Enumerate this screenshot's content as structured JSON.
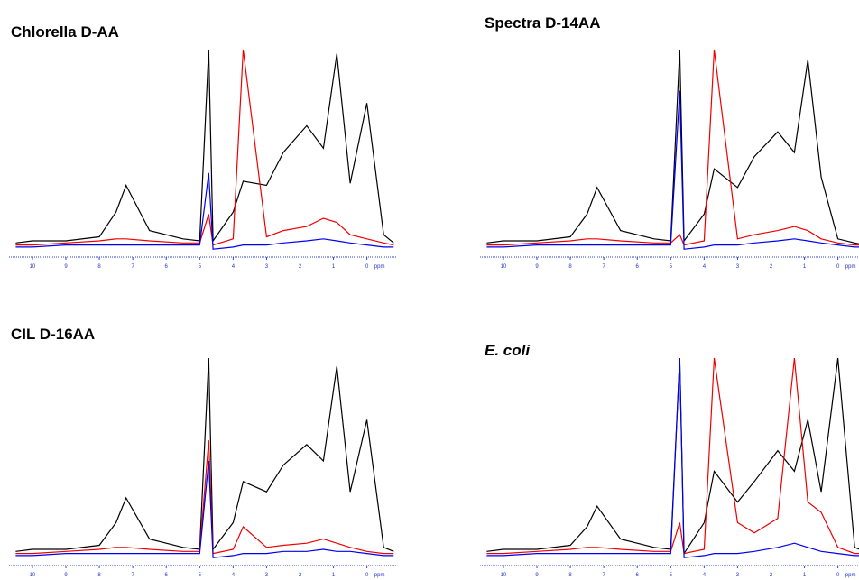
{
  "chart_data": [
    {
      "type": "line",
      "title": "Chlorella D-AA",
      "xlabel": "ppm",
      "x": [
        10.5,
        10,
        9,
        8,
        7.5,
        7.2,
        6.5,
        5.5,
        5,
        4.73,
        4.6,
        4,
        3.7,
        3,
        2.5,
        1.8,
        1.3,
        0.9,
        0.5,
        0,
        -0.5,
        -0.8
      ],
      "xlim": [
        10.7,
        -0.9
      ],
      "xticks": [
        10,
        9,
        8,
        7,
        6,
        5,
        4,
        3,
        2,
        1,
        0
      ],
      "ylim": [
        0,
        100
      ],
      "series": [
        {
          "name": "black",
          "color": "#000000",
          "values": [
            6,
            7,
            7,
            9,
            21,
            34,
            12,
            8,
            7,
            100,
            7,
            21,
            36,
            34,
            50,
            63,
            52,
            98,
            35,
            74,
            10,
            6
          ]
        },
        {
          "name": "red",
          "color": "#ee0000",
          "values": [
            5,
            5,
            6,
            7,
            8,
            8,
            7,
            6,
            6,
            20,
            5,
            8,
            100,
            9,
            12,
            14,
            18,
            16,
            10,
            8,
            6,
            5
          ]
        },
        {
          "name": "blue",
          "color": "#0000ee",
          "values": [
            4,
            4,
            5,
            5,
            5,
            5,
            5,
            5,
            5,
            40,
            3,
            4,
            5,
            5,
            6,
            7,
            8,
            7,
            6,
            5,
            4,
            4
          ]
        }
      ]
    },
    {
      "type": "line",
      "title": "Spectra D-14AA",
      "xlabel": "ppm",
      "x": [
        10.5,
        10,
        9,
        8,
        7.5,
        7.2,
        6.5,
        5.5,
        5,
        4.73,
        4.6,
        4,
        3.7,
        3,
        2.5,
        1.8,
        1.3,
        0.9,
        0.5,
        0,
        -0.5,
        -0.8
      ],
      "xlim": [
        10.7,
        -0.9
      ],
      "xticks": [
        10,
        9,
        8,
        7,
        6,
        5,
        4,
        3,
        2,
        1,
        0
      ],
      "ylim": [
        0,
        100
      ],
      "series": [
        {
          "name": "black",
          "color": "#000000",
          "values": [
            6,
            7,
            7,
            9,
            20,
            33,
            12,
            8,
            7,
            100,
            7,
            20,
            42,
            33,
            48,
            60,
            50,
            95,
            38,
            8,
            6,
            5
          ]
        },
        {
          "name": "red",
          "color": "#ee0000",
          "values": [
            5,
            5,
            6,
            7,
            8,
            8,
            7,
            6,
            6,
            10,
            5,
            7,
            100,
            8,
            10,
            12,
            14,
            12,
            8,
            6,
            5,
            5
          ]
        },
        {
          "name": "blue",
          "color": "#0000ee",
          "values": [
            4,
            4,
            5,
            5,
            5,
            5,
            5,
            5,
            5,
            80,
            3,
            4,
            5,
            5,
            6,
            7,
            8,
            7,
            6,
            5,
            4,
            4
          ]
        }
      ]
    },
    {
      "type": "line",
      "title": "CIL D-16AA",
      "xlabel": "ppm",
      "x": [
        10.5,
        10,
        9,
        8,
        7.5,
        7.2,
        6.5,
        5.5,
        5,
        4.73,
        4.6,
        4,
        3.7,
        3,
        2.5,
        1.8,
        1.3,
        0.9,
        0.5,
        0,
        -0.5,
        -0.8
      ],
      "xlim": [
        10.7,
        -0.9
      ],
      "xticks": [
        10,
        9,
        8,
        7,
        6,
        5,
        4,
        3,
        2,
        1,
        0
      ],
      "ylim": [
        0,
        100
      ],
      "series": [
        {
          "name": "black",
          "color": "#000000",
          "values": [
            6,
            7,
            7,
            9,
            20,
            32,
            12,
            8,
            7,
            100,
            7,
            20,
            40,
            35,
            48,
            58,
            50,
            96,
            35,
            70,
            8,
            6
          ]
        },
        {
          "name": "red",
          "color": "#ee0000",
          "values": [
            5,
            5,
            6,
            7,
            8,
            8,
            7,
            6,
            6,
            60,
            5,
            7,
            18,
            8,
            9,
            10,
            12,
            10,
            8,
            6,
            5,
            5
          ]
        },
        {
          "name": "blue",
          "color": "#0000ee",
          "values": [
            4,
            4,
            5,
            5,
            5,
            5,
            5,
            5,
            5,
            50,
            3,
            4,
            5,
            5,
            6,
            6,
            7,
            6,
            6,
            5,
            4,
            4
          ]
        }
      ]
    },
    {
      "type": "line",
      "title": "E. coli",
      "title_italic": true,
      "xlabel": "ppm",
      "x": [
        10.5,
        10,
        9,
        8,
        7.5,
        7.2,
        6.5,
        5.5,
        5,
        4.73,
        4.6,
        4,
        3.7,
        3,
        2.5,
        1.8,
        1.3,
        0.9,
        0.5,
        0,
        -0.5,
        -0.8
      ],
      "xlim": [
        10.7,
        -0.9
      ],
      "xticks": [
        10,
        9,
        8,
        7,
        6,
        5,
        4,
        3,
        2,
        1,
        0
      ],
      "ylim": [
        0,
        100
      ],
      "series": [
        {
          "name": "black",
          "color": "#000000",
          "values": [
            6,
            7,
            7,
            9,
            18,
            28,
            12,
            8,
            7,
            100,
            5,
            20,
            45,
            30,
            40,
            55,
            45,
            70,
            35,
            100,
            8,
            6
          ]
        },
        {
          "name": "red",
          "color": "#ee0000",
          "values": [
            5,
            5,
            6,
            7,
            8,
            8,
            7,
            6,
            6,
            20,
            5,
            7,
            100,
            20,
            15,
            22,
            100,
            30,
            25,
            8,
            5,
            5
          ]
        },
        {
          "name": "blue",
          "color": "#0000ee",
          "values": [
            4,
            4,
            5,
            5,
            5,
            5,
            5,
            5,
            5,
            100,
            3,
            4,
            5,
            5,
            6,
            8,
            10,
            8,
            6,
            5,
            4,
            4
          ]
        }
      ]
    }
  ]
}
